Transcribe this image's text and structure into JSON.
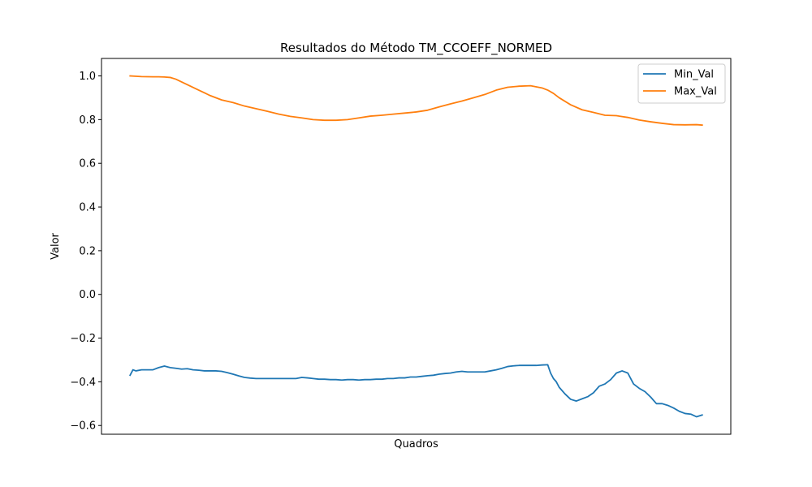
{
  "chart_data": {
    "type": "line",
    "title": "Resultados do Método TM_CCOEFF_NORMED",
    "xlabel": "Quadros",
    "ylabel": "Valor",
    "ylim": [
      -0.64,
      1.08
    ],
    "xlim": [
      -10,
      210
    ],
    "yticks": [
      1.0,
      0.8,
      0.6,
      0.4,
      0.2,
      0.0,
      -0.2,
      -0.4,
      -0.6
    ],
    "ytick_labels": [
      "1.0",
      "0.8",
      "0.6",
      "0.4",
      "0.2",
      "0.0",
      "−0.2",
      "−0.4",
      "−0.6"
    ],
    "legend_position": "top-right",
    "series": [
      {
        "name": "Min_Val",
        "color": "#1f77b4",
        "x": [
          0,
          1,
          2,
          4,
          6,
          8,
          10,
          12,
          14,
          16,
          18,
          20,
          22,
          24,
          26,
          28,
          30,
          32,
          34,
          36,
          38,
          40,
          42,
          44,
          46,
          48,
          50,
          52,
          54,
          56,
          58,
          60,
          62,
          64,
          66,
          68,
          70,
          72,
          74,
          76,
          78,
          80,
          82,
          84,
          86,
          88,
          90,
          92,
          94,
          96,
          98,
          100,
          102,
          104,
          106,
          108,
          110,
          112,
          114,
          116,
          118,
          120,
          122,
          124,
          126,
          128,
          130,
          132,
          134,
          136,
          138,
          140,
          142,
          144,
          146,
          147,
          148,
          149,
          150,
          152,
          154,
          156,
          158,
          160,
          162,
          164,
          166,
          168,
          170,
          172,
          174,
          176,
          178,
          180,
          182,
          184,
          186,
          188,
          190,
          192,
          194,
          196,
          198,
          200
        ],
        "values": [
          -0.37,
          -0.345,
          -0.35,
          -0.345,
          -0.345,
          -0.345,
          -0.335,
          -0.328,
          -0.335,
          -0.338,
          -0.342,
          -0.34,
          -0.345,
          -0.347,
          -0.35,
          -0.35,
          -0.35,
          -0.352,
          -0.358,
          -0.365,
          -0.373,
          -0.38,
          -0.383,
          -0.385,
          -0.385,
          -0.385,
          -0.385,
          -0.385,
          -0.385,
          -0.385,
          -0.385,
          -0.38,
          -0.382,
          -0.385,
          -0.388,
          -0.388,
          -0.39,
          -0.39,
          -0.392,
          -0.39,
          -0.39,
          -0.392,
          -0.39,
          -0.39,
          -0.388,
          -0.388,
          -0.385,
          -0.385,
          -0.382,
          -0.382,
          -0.378,
          -0.378,
          -0.375,
          -0.372,
          -0.37,
          -0.365,
          -0.362,
          -0.36,
          -0.355,
          -0.352,
          -0.355,
          -0.355,
          -0.355,
          -0.355,
          -0.35,
          -0.345,
          -0.338,
          -0.33,
          -0.327,
          -0.325,
          -0.325,
          -0.325,
          -0.325,
          -0.323,
          -0.322,
          -0.36,
          -0.385,
          -0.4,
          -0.425,
          -0.455,
          -0.48,
          -0.488,
          -0.478,
          -0.468,
          -0.45,
          -0.42,
          -0.41,
          -0.39,
          -0.36,
          -0.35,
          -0.36,
          -0.41,
          -0.43,
          -0.445,
          -0.47,
          -0.5,
          -0.5,
          -0.508,
          -0.52,
          -0.535,
          -0.545,
          -0.548,
          -0.56,
          -0.552
        ]
      },
      {
        "name": "Max_Val",
        "color": "#ff7f0e",
        "x": [
          0,
          4,
          8,
          10,
          12,
          14,
          16,
          20,
          24,
          28,
          32,
          36,
          40,
          44,
          48,
          52,
          56,
          60,
          64,
          68,
          72,
          76,
          80,
          84,
          88,
          92,
          96,
          100,
          104,
          108,
          112,
          116,
          120,
          124,
          128,
          132,
          136,
          140,
          144,
          146,
          148,
          150,
          154,
          158,
          162,
          166,
          170,
          174,
          178,
          182,
          186,
          190,
          194,
          198,
          200
        ],
        "values": [
          1.0,
          0.997,
          0.996,
          0.996,
          0.995,
          0.993,
          0.985,
          0.96,
          0.935,
          0.91,
          0.89,
          0.878,
          0.862,
          0.85,
          0.838,
          0.825,
          0.815,
          0.808,
          0.8,
          0.797,
          0.797,
          0.8,
          0.808,
          0.816,
          0.82,
          0.825,
          0.83,
          0.835,
          0.843,
          0.858,
          0.872,
          0.885,
          0.9,
          0.915,
          0.935,
          0.948,
          0.953,
          0.955,
          0.945,
          0.935,
          0.92,
          0.9,
          0.868,
          0.845,
          0.833,
          0.82,
          0.818,
          0.81,
          0.798,
          0.79,
          0.783,
          0.777,
          0.776,
          0.777,
          0.775
        ]
      }
    ]
  }
}
